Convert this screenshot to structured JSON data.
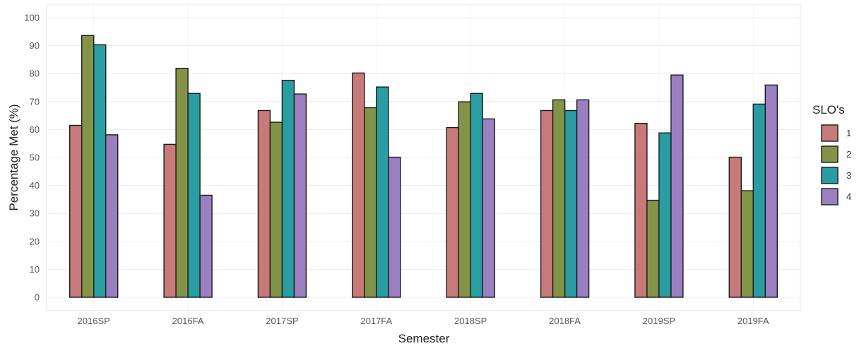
{
  "chart_data": {
    "type": "bar",
    "xlabel": "Semester",
    "ylabel": "Percentage Met (%)",
    "ylim": [
      0,
      100
    ],
    "yticks": [
      0,
      10,
      20,
      30,
      40,
      50,
      60,
      70,
      80,
      90,
      100
    ],
    "grid": true,
    "categories": [
      "2016SP",
      "2016FA",
      "2017SP",
      "2017FA",
      "2018SP",
      "2018FA",
      "2019SP",
      "2019FA"
    ],
    "legend": {
      "title": "SLO's",
      "position": "right"
    },
    "series": [
      {
        "name": "1",
        "color": "#c87a7a",
        "values": [
          61.5,
          54.7,
          66.8,
          80.2,
          60.7,
          66.8,
          62.2,
          50.1
        ]
      },
      {
        "name": "2",
        "color": "#839448",
        "values": [
          93.6,
          81.9,
          62.6,
          67.8,
          69.9,
          70.6,
          34.7,
          38.1
        ]
      },
      {
        "name": "3",
        "color": "#2a9da2",
        "values": [
          90.3,
          72.9,
          77.6,
          75.2,
          72.9,
          66.8,
          58.8,
          69.1
        ]
      },
      {
        "name": "4",
        "color": "#9a80c0",
        "values": [
          58.1,
          36.5,
          72.7,
          50.1,
          63.8,
          70.6,
          79.5,
          75.9
        ]
      }
    ]
  }
}
